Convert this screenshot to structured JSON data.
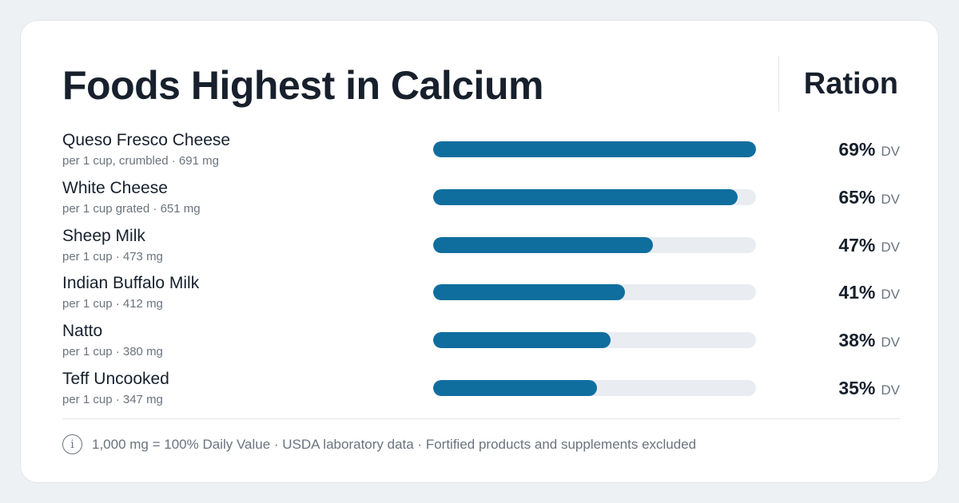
{
  "chart_data": {
    "type": "bar",
    "orientation": "horizontal",
    "title": "Foods Highest in Calcium",
    "categories": [
      "Queso Fresco Cheese",
      "White Cheese",
      "Sheep Milk",
      "Indian Buffalo Milk",
      "Natto",
      "Teff Uncooked"
    ],
    "details": [
      "per 1 cup, crumbled · 691 mg",
      "per 1 cup grated · 651 mg",
      "per 1 cup · 473 mg",
      "per 1 cup · 412 mg",
      "per 1 cup · 380 mg",
      "per 1 cup · 347 mg"
    ],
    "values": [
      69,
      65,
      47,
      41,
      38,
      35
    ],
    "value_labels": [
      "69%",
      "65%",
      "47%",
      "41%",
      "38%",
      "35%"
    ],
    "unit_label": "DV",
    "xlim": [
      0,
      69
    ],
    "bar_color": "#0f6e9e",
    "track_color": "#e9edf1",
    "grid": false,
    "legend": "none"
  },
  "brand": "Ration",
  "footer": {
    "info_icon": "info-icon",
    "info_glyph": "i",
    "note": "1,000 mg = 100% Daily Value · USDA laboratory data · Fortified products and supplements excluded"
  }
}
